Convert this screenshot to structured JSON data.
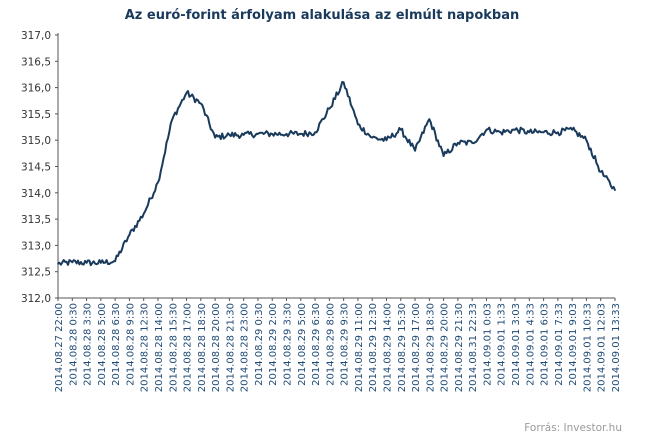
{
  "chart_data": {
    "type": "line",
    "title": "Az euró-forint árfolyam alakulása az elmúlt napokban",
    "xlabel": "",
    "ylabel": "",
    "ylim": [
      312.0,
      317.0
    ],
    "yticks": [
      "312,0",
      "312,5",
      "313,0",
      "313,5",
      "314,0",
      "314,5",
      "315,0",
      "315,5",
      "316,0",
      "316,5",
      "317,0"
    ],
    "grid": false,
    "categories": [
      "2014.08.27 22:00",
      "2014.08.28 0:30",
      "2014.08.28 3:30",
      "2014.08.28 5:00",
      "2014.08.28 6:30",
      "2014.08.28 9:30",
      "2014.08.28 12:30",
      "2014.08.28 14:00",
      "2014.08.28 15:30",
      "2014.08.28 17:00",
      "2014.08.28 18:30",
      "2014.08.28 20:00",
      "2014.08.28 21:30",
      "2014.08.28 23:00",
      "2014.08.29 0:30",
      "2014.08.29 2:00",
      "2014.08.29 3:30",
      "2014.08.29 5:00",
      "2014.08.29 6:30",
      "2014.08.29 8:00",
      "2014.08.29 9:30",
      "2014.08.29 11:00",
      "2014.08.29 12:30",
      "2014.08.29 14:00",
      "2014.08.29 15:30",
      "2014.08.29 17:00",
      "2014.08.29 18:30",
      "2014.08.29 20:00",
      "2014.08.29 21:30",
      "2014.08.31 22:33",
      "2014.09.01 0:03",
      "2014.09.01 1:33",
      "2014.09.01 3:03",
      "2014.09.01 4:33",
      "2014.09.01 6:03",
      "2014.09.01 7:33",
      "2014.09.01 9:03",
      "2014.09.01 10:33",
      "2014.09.01 12:03",
      "2014.09.01 13:33"
    ],
    "series": [
      {
        "name": "",
        "color": "#1a3a5c",
        "values": [
          312.65,
          312.68,
          312.67,
          312.67,
          312.7,
          313.2,
          313.6,
          314.2,
          315.4,
          315.9,
          315.7,
          315.05,
          315.1,
          315.1,
          315.12,
          315.12,
          315.12,
          315.12,
          315.15,
          315.6,
          316.1,
          315.3,
          315.05,
          315.0,
          315.2,
          314.8,
          315.4,
          314.7,
          314.95,
          314.95,
          315.2,
          315.15,
          315.2,
          315.15,
          315.15,
          315.15,
          315.2,
          315.0,
          314.4,
          314.05
        ]
      }
    ]
  },
  "source_label": "Forrás: Investor.hu"
}
